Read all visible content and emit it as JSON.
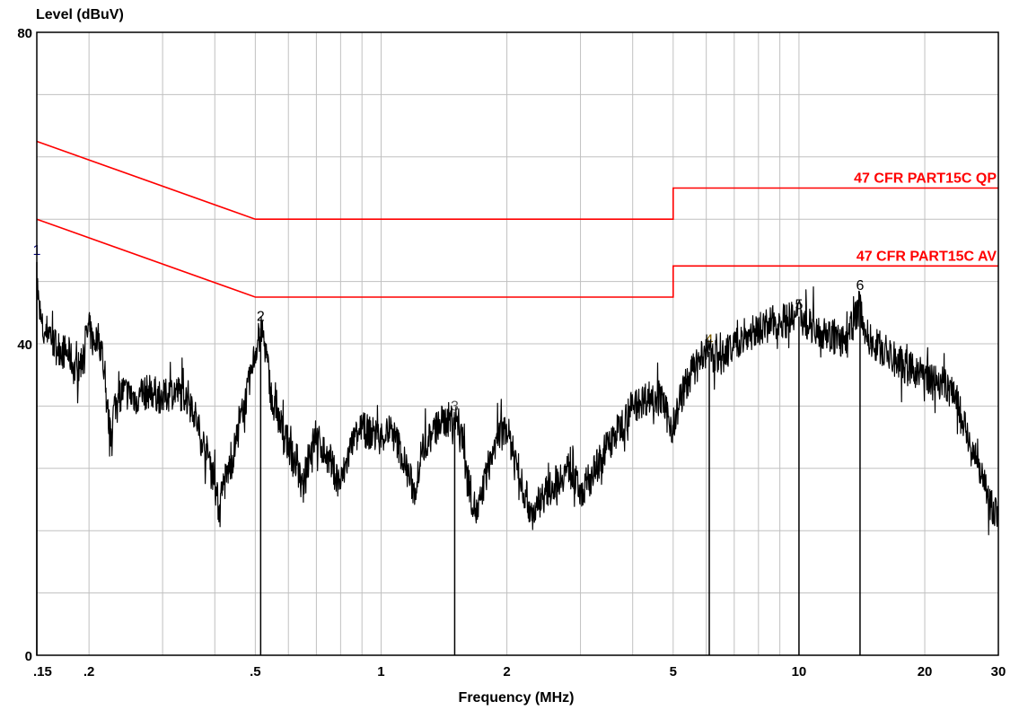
{
  "chart_data": {
    "type": "line",
    "ylabel": "Level (dBuV)",
    "xlabel": "Frequency (MHz)",
    "x_scale": "log",
    "xlim": [
      0.15,
      30
    ],
    "ylim": [
      0,
      80
    ],
    "grid": true,
    "y_tick_labels": [
      {
        "value": 0,
        "label": "0"
      },
      {
        "value": 40,
        "label": "40"
      },
      {
        "value": 80,
        "label": "80"
      }
    ],
    "y_minor_ticks": [
      8,
      16,
      24,
      32,
      48,
      56,
      64,
      72
    ],
    "x_tick_labels": [
      {
        "value": 0.15,
        "label": ".15"
      },
      {
        "value": 0.2,
        "label": ".2"
      },
      {
        "value": 0.5,
        "label": ".5"
      },
      {
        "value": 1,
        "label": "1"
      },
      {
        "value": 2,
        "label": "2"
      },
      {
        "value": 5,
        "label": "5"
      },
      {
        "value": 10,
        "label": "10"
      },
      {
        "value": 20,
        "label": "20"
      },
      {
        "value": 30,
        "label": "30"
      }
    ],
    "x_grid": [
      0.2,
      0.3,
      0.4,
      0.5,
      0.6,
      0.7,
      0.8,
      0.9,
      1,
      2,
      3,
      4,
      5,
      6,
      7,
      8,
      9,
      10,
      20
    ],
    "limit_lines": [
      {
        "name": "47 CFR PART15C QP",
        "color": "#ff0000",
        "points": [
          [
            0.15,
            66
          ],
          [
            0.5,
            56
          ],
          [
            5,
            56
          ],
          [
            5,
            60
          ],
          [
            30,
            60
          ]
        ]
      },
      {
        "name": "47 CFR PART15C AV",
        "color": "#ff0000",
        "points": [
          [
            0.15,
            56
          ],
          [
            0.5,
            46
          ],
          [
            5,
            46
          ],
          [
            5,
            50
          ],
          [
            30,
            50
          ]
        ]
      }
    ],
    "series": [
      {
        "color": "#000000",
        "points": [
          [
            0.15,
            49
          ],
          [
            0.152,
            44
          ],
          [
            0.156,
            41
          ],
          [
            0.16,
            42
          ],
          [
            0.165,
            40
          ],
          [
            0.17,
            39.5
          ],
          [
            0.18,
            38.5
          ],
          [
            0.185,
            36.5
          ],
          [
            0.19,
            37
          ],
          [
            0.195,
            40
          ],
          [
            0.2,
            42
          ],
          [
            0.205,
            40
          ],
          [
            0.21,
            41
          ],
          [
            0.215,
            39
          ],
          [
            0.22,
            33
          ],
          [
            0.225,
            28
          ],
          [
            0.23,
            32
          ],
          [
            0.24,
            34
          ],
          [
            0.26,
            33
          ],
          [
            0.28,
            34
          ],
          [
            0.3,
            33
          ],
          [
            0.32,
            34
          ],
          [
            0.35,
            33
          ],
          [
            0.37,
            28
          ],
          [
            0.39,
            25
          ],
          [
            0.4,
            22
          ],
          [
            0.41,
            18.5
          ],
          [
            0.42,
            22
          ],
          [
            0.44,
            25
          ],
          [
            0.46,
            30
          ],
          [
            0.48,
            34
          ],
          [
            0.5,
            39
          ],
          [
            0.51,
            41
          ],
          [
            0.52,
            41.5
          ],
          [
            0.53,
            39
          ],
          [
            0.55,
            32
          ],
          [
            0.57,
            30
          ],
          [
            0.6,
            27
          ],
          [
            0.63,
            24
          ],
          [
            0.65,
            21
          ],
          [
            0.67,
            26
          ],
          [
            0.7,
            28
          ],
          [
            0.75,
            25
          ],
          [
            0.8,
            22
          ],
          [
            0.85,
            27
          ],
          [
            0.9,
            29
          ],
          [
            1,
            28
          ],
          [
            1.05,
            29
          ],
          [
            1.1,
            27
          ],
          [
            1.15,
            24
          ],
          [
            1.2,
            21
          ],
          [
            1.25,
            26
          ],
          [
            1.3,
            28
          ],
          [
            1.4,
            30
          ],
          [
            1.5,
            30.5
          ],
          [
            1.55,
            29
          ],
          [
            1.6,
            24
          ],
          [
            1.65,
            20
          ],
          [
            1.7,
            18
          ],
          [
            1.8,
            24
          ],
          [
            1.9,
            28
          ],
          [
            2,
            29
          ],
          [
            2.1,
            25
          ],
          [
            2.2,
            21
          ],
          [
            2.3,
            18
          ],
          [
            2.4,
            20
          ],
          [
            2.6,
            22
          ],
          [
            2.8,
            24
          ],
          [
            3,
            21
          ],
          [
            3.2,
            23
          ],
          [
            3.4,
            26
          ],
          [
            3.6,
            28
          ],
          [
            3.8,
            30
          ],
          [
            4,
            32
          ],
          [
            4.3,
            33
          ],
          [
            4.6,
            33.5
          ],
          [
            5,
            29
          ],
          [
            5.2,
            33
          ],
          [
            5.5,
            36
          ],
          [
            6,
            39
          ],
          [
            6.5,
            38
          ],
          [
            7,
            40
          ],
          [
            7.5,
            41
          ],
          [
            8,
            42
          ],
          [
            8.5,
            42.5
          ],
          [
            9,
            43
          ],
          [
            9.5,
            43
          ],
          [
            10,
            43.5
          ],
          [
            11,
            42
          ],
          [
            12,
            41
          ],
          [
            13,
            40
          ],
          [
            14,
            45
          ],
          [
            14.5,
            41
          ],
          [
            16,
            39
          ],
          [
            18,
            37
          ],
          [
            20,
            36
          ],
          [
            22,
            35
          ],
          [
            24,
            33
          ],
          [
            25,
            29
          ],
          [
            26,
            26
          ],
          [
            27,
            24
          ],
          [
            28,
            21
          ],
          [
            29,
            19
          ],
          [
            30,
            18
          ]
        ]
      }
    ],
    "markers": [
      {
        "label": "1",
        "x": 0.15,
        "y": 50.5,
        "color": "#000080"
      },
      {
        "label": "2",
        "x": 0.515,
        "y": 42,
        "color": "#000000"
      },
      {
        "label": "3",
        "x": 1.5,
        "y": 30.5,
        "color": "#555555"
      },
      {
        "label": "4",
        "x": 6.1,
        "y": 39,
        "color": "#806000"
      },
      {
        "label": "5",
        "x": 10,
        "y": 43.5,
        "color": "#000000"
      },
      {
        "label": "6",
        "x": 14,
        "y": 46,
        "color": "#000000"
      }
    ]
  }
}
